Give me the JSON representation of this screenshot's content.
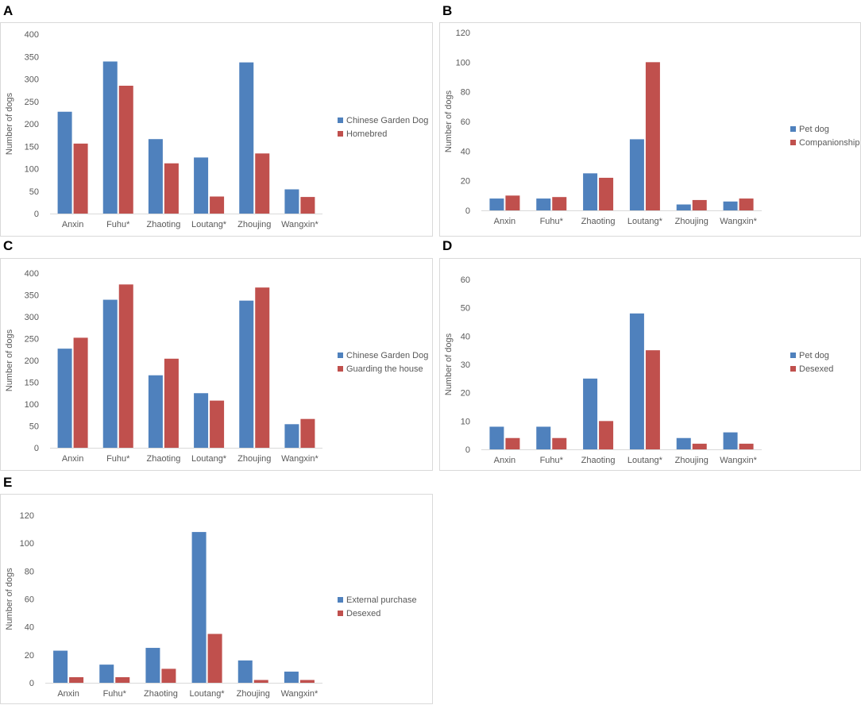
{
  "chart_data": [
    {
      "panel": "A",
      "type": "bar",
      "categories": [
        "Anxin",
        "Fuhu*",
        "Zhaoting",
        "Loutang*",
        "Zhoujing",
        "Wangxin*"
      ],
      "series": [
        {
          "name": "Chinese Garden Dog",
          "color": "#4f81bd",
          "values": [
            227,
            339,
            166,
            125,
            337,
            54
          ]
        },
        {
          "name": "Homebred",
          "color": "#c0504d",
          "values": [
            156,
            285,
            112,
            38,
            134,
            37
          ]
        }
      ],
      "ylabel": "Number of dogs",
      "ylim": [
        0,
        400
      ],
      "yticks": [
        "0",
        "50",
        "100",
        "150",
        "200",
        "250",
        "300",
        "350",
        "400"
      ],
      "legend_position": "right"
    },
    {
      "panel": "B",
      "type": "bar",
      "categories": [
        "Anxin",
        "Fuhu*",
        "Zhaoting",
        "Loutang*",
        "Zhoujing",
        "Wangxin*"
      ],
      "series": [
        {
          "name": "Pet dog",
          "color": "#4f81bd",
          "values": [
            8,
            8,
            25,
            48,
            4,
            6
          ]
        },
        {
          "name": "Companionship",
          "color": "#c0504d",
          "values": [
            10,
            9,
            22,
            100,
            7,
            8
          ]
        }
      ],
      "ylabel": "Number of dogs",
      "ylim": [
        0,
        120
      ],
      "yticks": [
        "0",
        "20",
        "40",
        "60",
        "80",
        "100",
        "120"
      ],
      "legend_position": "right"
    },
    {
      "panel": "C",
      "type": "bar",
      "categories": [
        "Anxin",
        "Fuhu*",
        "Zhaoting",
        "Loutang*",
        "Zhoujing",
        "Wangxin*"
      ],
      "series": [
        {
          "name": "Chinese Garden Dog",
          "color": "#4f81bd",
          "values": [
            227,
            339,
            166,
            125,
            337,
            54
          ]
        },
        {
          "name": "Guarding the house",
          "color": "#c0504d",
          "values": [
            252,
            374,
            204,
            108,
            367,
            66
          ]
        }
      ],
      "ylabel": "Number of dogs",
      "ylim": [
        0,
        400
      ],
      "yticks": [
        "0",
        "50",
        "100",
        "150",
        "200",
        "250",
        "300",
        "350",
        "400"
      ],
      "legend_position": "right"
    },
    {
      "panel": "D",
      "type": "bar",
      "categories": [
        "Anxin",
        "Fuhu*",
        "Zhaoting",
        "Loutang*",
        "Zhoujing",
        "Wangxin*"
      ],
      "series": [
        {
          "name": "Pet dog",
          "color": "#4f81bd",
          "values": [
            8,
            8,
            25,
            48,
            4,
            6
          ]
        },
        {
          "name": "Desexed",
          "color": "#c0504d",
          "values": [
            4,
            4,
            10,
            35,
            2,
            2
          ]
        }
      ],
      "ylabel": "Number of dogs",
      "ylim": [
        0,
        60
      ],
      "yticks": [
        "0",
        "10",
        "20",
        "30",
        "40",
        "50",
        "60"
      ],
      "legend_position": "right"
    },
    {
      "panel": "E",
      "type": "bar",
      "categories": [
        "Anxin",
        "Fuhu*",
        "Zhaoting",
        "Loutang*",
        "Zhoujing",
        "Wangxin*"
      ],
      "series": [
        {
          "name": "External purchase",
          "color": "#4f81bd",
          "values": [
            23,
            13,
            25,
            108,
            16,
            8
          ]
        },
        {
          "name": "Desexed",
          "color": "#c0504d",
          "values": [
            4,
            4,
            10,
            35,
            2,
            2
          ]
        }
      ],
      "ylabel": "Number of dogs",
      "ylim": [
        0,
        120
      ],
      "yticks": [
        "0",
        "20",
        "40",
        "60",
        "80",
        "100",
        "120"
      ],
      "legend_position": "right"
    }
  ]
}
